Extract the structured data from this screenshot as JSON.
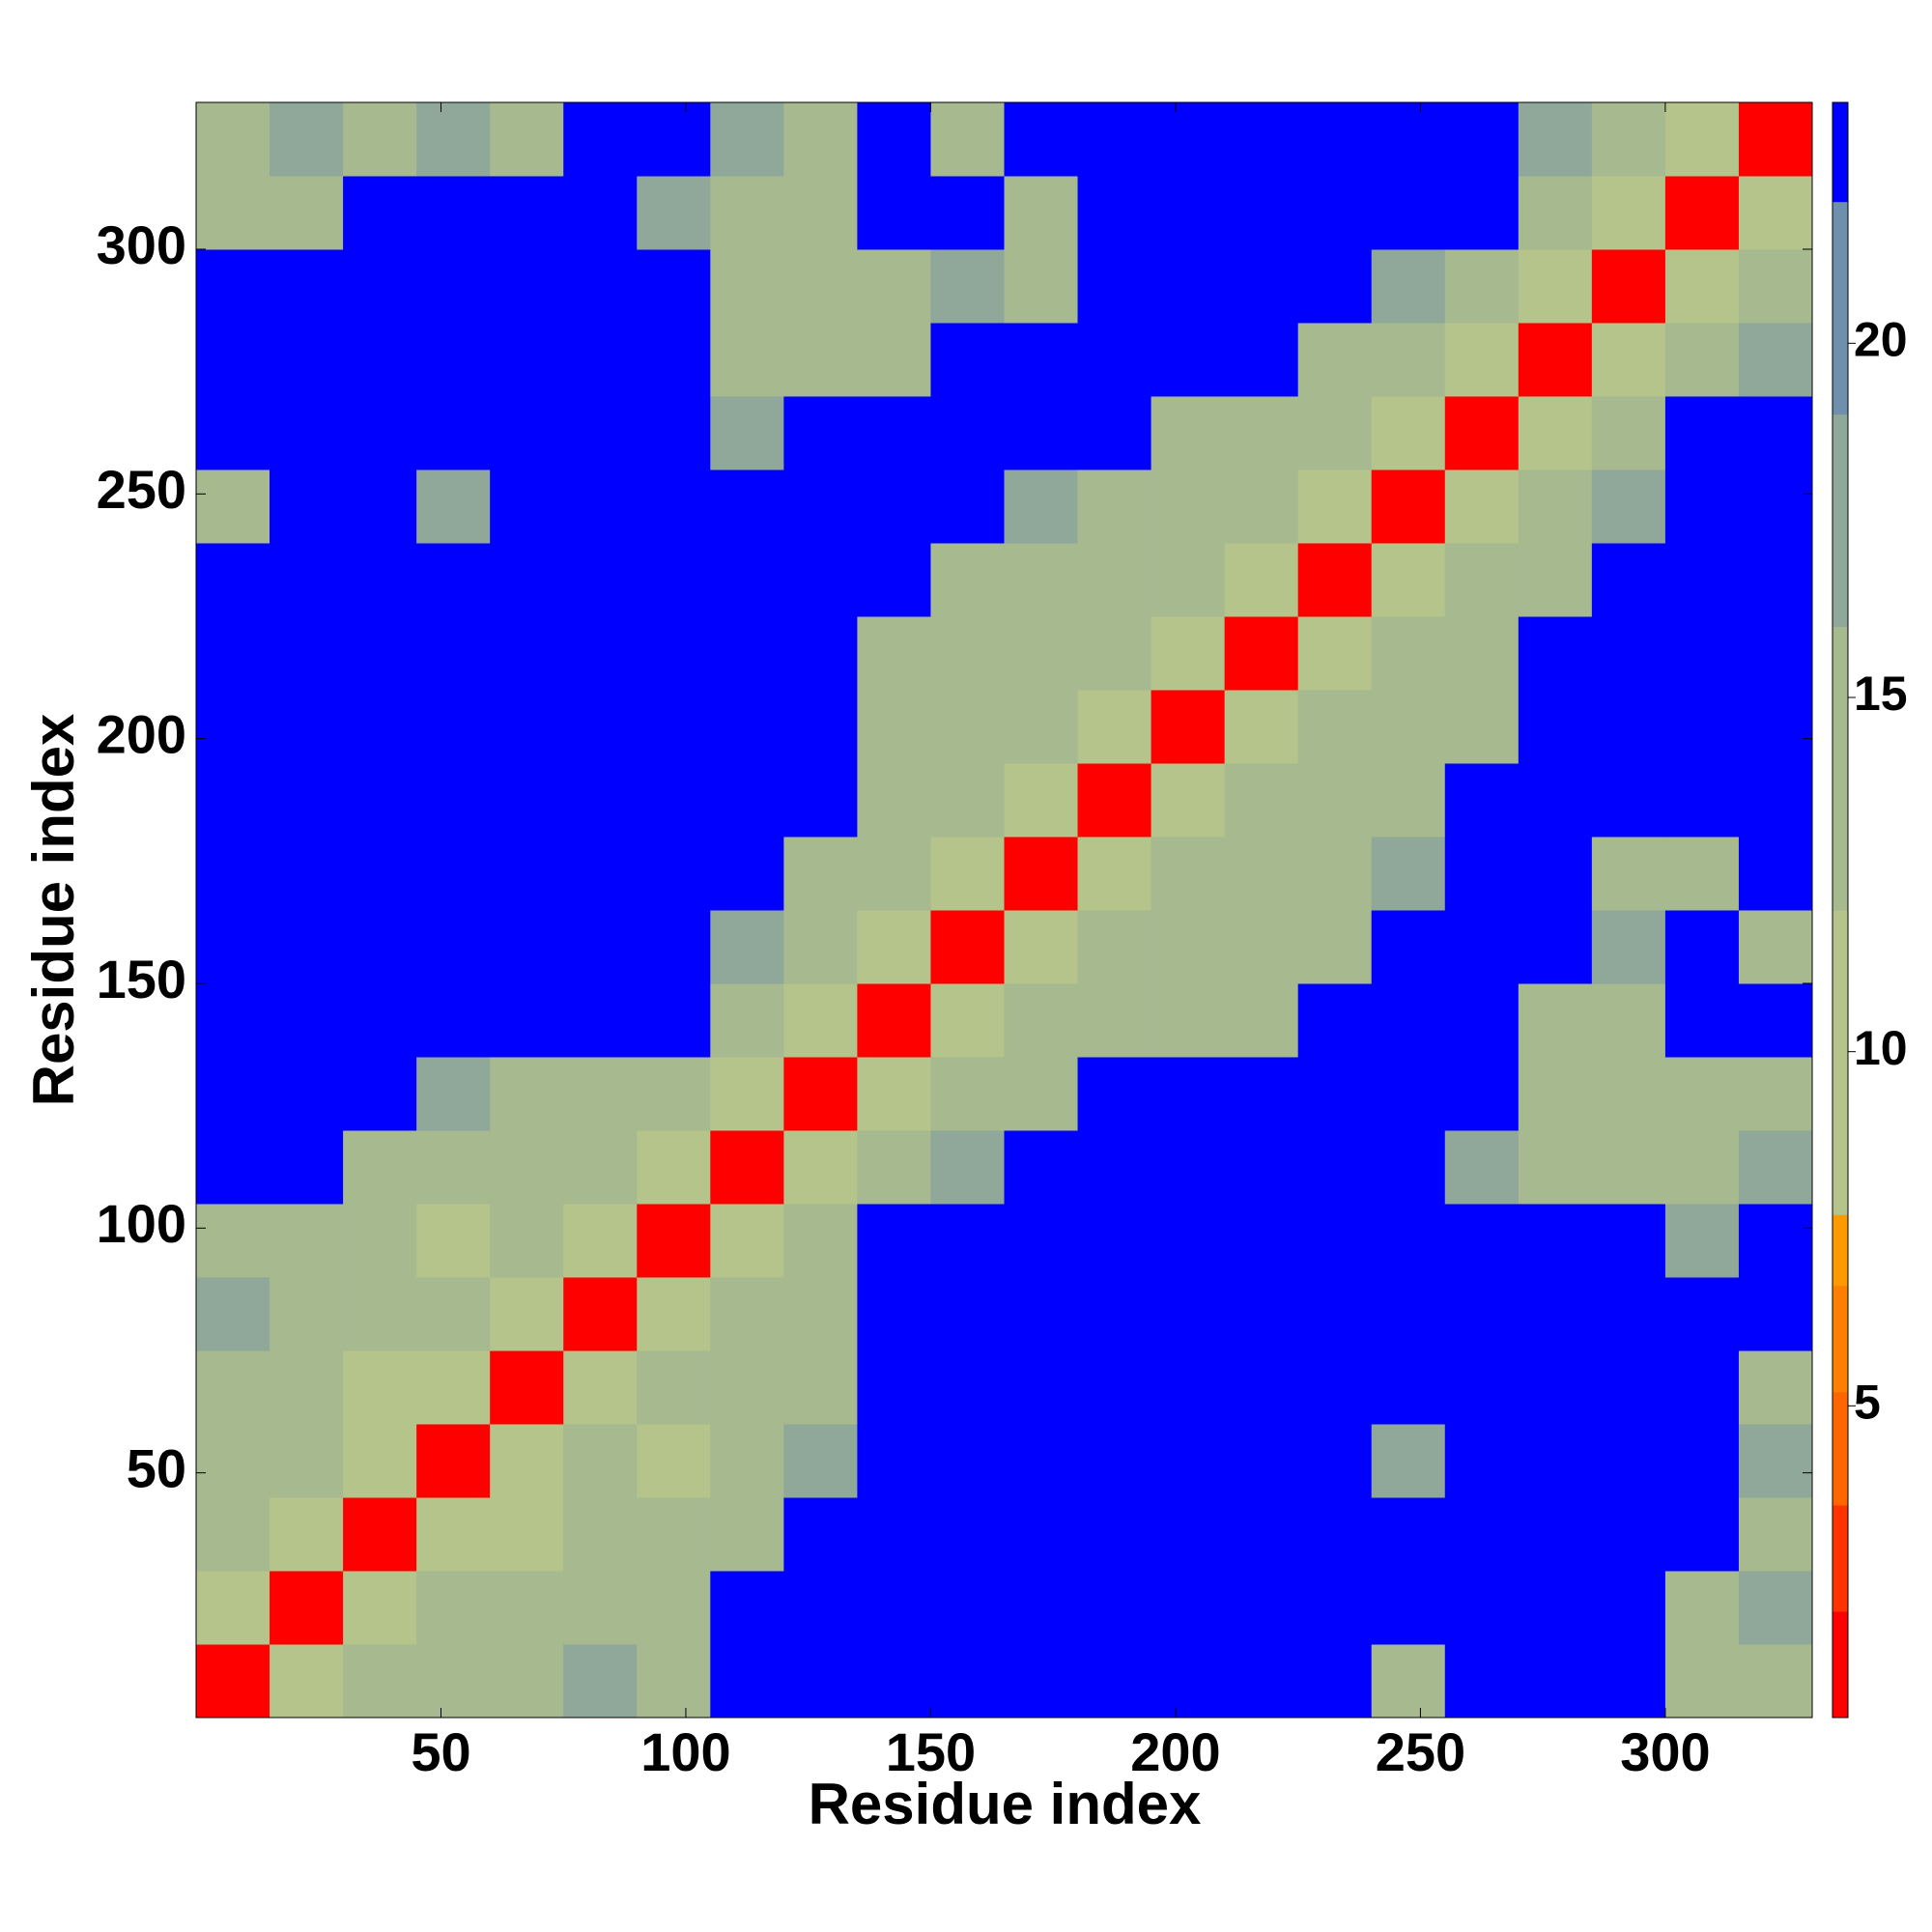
{
  "chart_data": {
    "type": "heatmap",
    "xlabel": "Residue index",
    "ylabel": "Residue index",
    "xlim": [
      0,
      330
    ],
    "ylim": [
      0,
      330
    ],
    "xticks": [
      50,
      100,
      150,
      200,
      250,
      300
    ],
    "yticks": [
      50,
      100,
      150,
      200,
      250,
      300
    ],
    "xbins": [
      0,
      15,
      30,
      45,
      60,
      75,
      90,
      105,
      120,
      135,
      150,
      165,
      180,
      195,
      210,
      225,
      240,
      255,
      270,
      285,
      300,
      315,
      330
    ],
    "ybins": [
      0,
      15,
      30,
      45,
      60,
      75,
      90,
      105,
      120,
      135,
      150,
      165,
      180,
      195,
      210,
      225,
      240,
      255,
      270,
      285,
      300,
      315,
      330
    ],
    "clim": [
      0.6,
      23.4
    ],
    "cticks": [
      5,
      10,
      15,
      20
    ],
    "colorscale": [
      [
        0.6,
        "#ff0000"
      ],
      [
        2.1,
        "#ff3300"
      ],
      [
        3.6,
        "#ff6600"
      ],
      [
        5.2,
        "#ff8000"
      ],
      [
        6.7,
        "#ff9900"
      ],
      [
        7.7,
        "#b4c48a"
      ],
      [
        12,
        "#a6b98f"
      ],
      [
        16,
        "#8fa89a"
      ],
      [
        19,
        "#6f90ac"
      ],
      [
        22,
        "#0000ff"
      ]
    ],
    "z": [
      [
        2,
        9,
        13,
        13,
        13,
        18,
        13,
        25,
        25,
        25,
        25,
        25,
        25,
        25,
        25,
        25,
        13,
        25,
        25,
        25,
        13,
        13
      ],
      [
        9,
        2,
        9,
        13,
        13,
        13,
        13,
        25,
        25,
        25,
        25,
        25,
        25,
        25,
        25,
        25,
        25,
        25,
        25,
        25,
        13,
        18
      ],
      [
        13,
        9,
        2,
        9,
        9,
        13,
        13,
        13,
        25,
        25,
        25,
        25,
        25,
        25,
        25,
        25,
        25,
        25,
        25,
        25,
        25,
        13
      ],
      [
        13,
        13,
        9,
        2,
        9,
        13,
        9,
        13,
        18,
        25,
        25,
        25,
        25,
        25,
        25,
        25,
        18,
        25,
        25,
        25,
        25,
        18
      ],
      [
        13,
        13,
        9,
        9,
        2,
        9,
        13,
        13,
        13,
        25,
        25,
        25,
        25,
        25,
        25,
        25,
        25,
        25,
        25,
        25,
        25,
        13
      ],
      [
        18,
        13,
        13,
        13,
        9,
        2,
        9,
        13,
        13,
        25,
        25,
        25,
        25,
        25,
        25,
        25,
        25,
        25,
        25,
        25,
        25,
        25
      ],
      [
        13,
        13,
        13,
        9,
        13,
        9,
        2,
        9,
        13,
        25,
        25,
        25,
        25,
        25,
        25,
        25,
        25,
        25,
        25,
        25,
        18,
        25
      ],
      [
        25,
        25,
        13,
        13,
        13,
        13,
        9,
        2,
        9,
        13,
        18,
        25,
        25,
        25,
        25,
        25,
        25,
        18,
        13,
        13,
        13,
        18
      ],
      [
        25,
        25,
        25,
        18,
        13,
        13,
        13,
        9,
        2,
        9,
        13,
        13,
        25,
        25,
        25,
        25,
        25,
        25,
        13,
        13,
        13,
        13
      ],
      [
        25,
        25,
        25,
        25,
        25,
        25,
        25,
        13,
        9,
        2,
        9,
        13,
        13,
        13,
        13,
        25,
        25,
        25,
        13,
        13,
        25,
        25
      ],
      [
        25,
        25,
        25,
        25,
        25,
        25,
        25,
        18,
        13,
        9,
        2,
        9,
        13,
        13,
        13,
        13,
        25,
        25,
        25,
        18,
        25,
        13
      ],
      [
        25,
        25,
        25,
        25,
        25,
        25,
        25,
        25,
        13,
        13,
        9,
        2,
        9,
        13,
        13,
        13,
        18,
        25,
        25,
        13,
        13,
        25
      ],
      [
        25,
        25,
        25,
        25,
        25,
        25,
        25,
        25,
        25,
        13,
        13,
        9,
        2,
        9,
        13,
        13,
        13,
        25,
        25,
        25,
        25,
        25
      ],
      [
        25,
        25,
        25,
        25,
        25,
        25,
        25,
        25,
        25,
        13,
        13,
        13,
        9,
        2,
        9,
        13,
        13,
        13,
        25,
        25,
        25,
        25
      ],
      [
        25,
        25,
        25,
        25,
        25,
        25,
        25,
        25,
        25,
        13,
        13,
        13,
        13,
        9,
        2,
        9,
        13,
        13,
        25,
        25,
        25,
        25
      ],
      [
        25,
        25,
        25,
        25,
        25,
        25,
        25,
        25,
        25,
        25,
        13,
        13,
        13,
        13,
        9,
        2,
        9,
        13,
        13,
        25,
        25,
        25
      ],
      [
        13,
        25,
        25,
        18,
        25,
        25,
        25,
        25,
        25,
        25,
        25,
        18,
        13,
        13,
        13,
        9,
        2,
        9,
        13,
        18,
        25,
        25
      ],
      [
        25,
        25,
        25,
        25,
        25,
        25,
        25,
        18,
        25,
        25,
        25,
        25,
        25,
        13,
        13,
        13,
        9,
        2,
        9,
        13,
        25,
        25
      ],
      [
        25,
        25,
        25,
        25,
        25,
        25,
        25,
        13,
        13,
        13,
        25,
        25,
        25,
        25,
        25,
        13,
        13,
        9,
        2,
        9,
        13,
        18
      ],
      [
        25,
        25,
        25,
        25,
        25,
        25,
        25,
        13,
        13,
        13,
        18,
        13,
        25,
        25,
        25,
        25,
        18,
        13,
        9,
        2,
        9,
        13
      ],
      [
        13,
        13,
        25,
        25,
        25,
        25,
        18,
        13,
        13,
        25,
        25,
        13,
        25,
        25,
        25,
        25,
        25,
        25,
        13,
        9,
        2,
        9
      ],
      [
        13,
        18,
        13,
        18,
        13,
        25,
        25,
        18,
        13,
        25,
        13,
        25,
        25,
        25,
        25,
        25,
        25,
        25,
        18,
        13,
        9,
        2
      ]
    ]
  }
}
